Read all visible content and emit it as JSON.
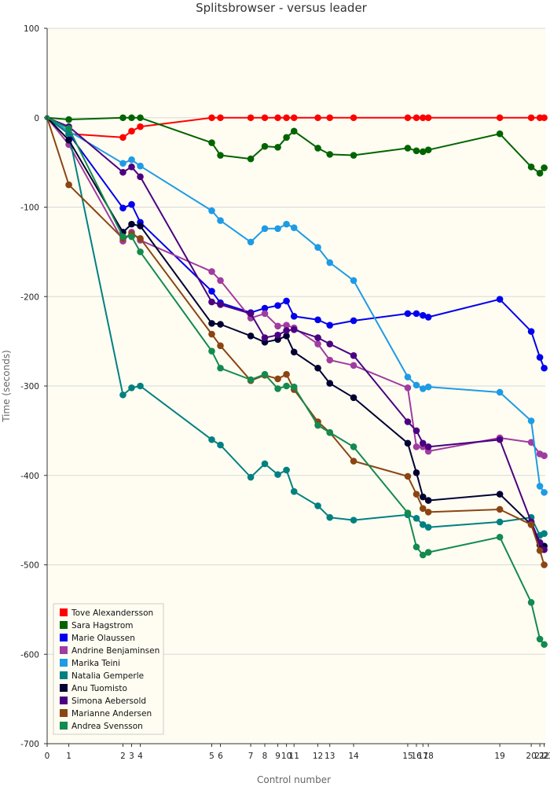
{
  "chart_data": {
    "type": "line",
    "title": "Splitsbrowser - versus leader",
    "xlabel": "Control number",
    "ylabel": "Time (seconds)",
    "ylim": [
      -700,
      100
    ],
    "yticks": [
      100,
      0,
      -100,
      -200,
      -300,
      -400,
      -500,
      -600,
      -700
    ],
    "grid": "horizontal",
    "legend_position": "bottom-left",
    "x": [
      0,
      1,
      2.05,
      2.4,
      2.8,
      5.05,
      5.4,
      6.8,
      7.45,
      8.05,
      8.45,
      8.8,
      9.9,
      10.45,
      11.55,
      14.05,
      14.45,
      14.75,
      15.0,
      18.3,
      18.75,
      19.05
    ],
    "xtick_positions": [
      0,
      1,
      2.05,
      2.4,
      2.8,
      5.05,
      5.4,
      6.8,
      7.45,
      8.05,
      8.45,
      8.8,
      9.9,
      10.45,
      11.55,
      14.05,
      14.45,
      14.75,
      15.0,
      18.3,
      19.7,
      20.0,
      20.2
    ],
    "xtick_labels": [
      "0",
      "1",
      "2",
      "3",
      "4",
      "5",
      "6",
      "7",
      "8",
      "9",
      "10",
      "11",
      "12",
      "13",
      "14",
      "15",
      "16",
      "17",
      "18",
      "19",
      "20",
      "21",
      "22"
    ],
    "xtick_last_label": "23",
    "series": [
      {
        "name": "Tove Alexandersson",
        "color": "#ff0000",
        "x": [
          0,
          1,
          3.5,
          3.9,
          4.3,
          7.6,
          8.0,
          9.4,
          10.05,
          10.65,
          11.05,
          11.4,
          12.5,
          13.05,
          14.15,
          16.65,
          17.05,
          17.35,
          17.6,
          20.9,
          22.35,
          22.75,
          22.95
        ],
        "values": [
          0,
          -18,
          -22,
          -15,
          -10,
          0,
          0,
          0,
          0,
          0,
          0,
          0,
          0,
          0,
          0,
          0,
          0,
          0,
          0,
          0,
          0,
          0,
          0
        ]
      },
      {
        "name": "Sara Hagstrom",
        "color": "#006400",
        "x": [
          0,
          1,
          3.5,
          3.9,
          4.3,
          7.6,
          8.0,
          9.4,
          10.05,
          10.65,
          11.05,
          11.4,
          12.5,
          13.05,
          14.15,
          16.65,
          17.05,
          17.35,
          17.6,
          20.9,
          22.35,
          22.75,
          22.95
        ],
        "values": [
          0,
          -2,
          0,
          0,
          0,
          -28,
          -42,
          -46,
          -32,
          -33,
          -22,
          -15,
          -34,
          -41,
          -42,
          -34,
          -37,
          -38,
          -36,
          -18,
          -55,
          -62,
          -56
        ]
      },
      {
        "name": "Marie Olaussen",
        "color": "#0000ee",
        "x": [
          0,
          1,
          3.5,
          3.9,
          4.3,
          7.6,
          8.0,
          9.4,
          10.05,
          10.65,
          11.05,
          11.4,
          12.5,
          13.05,
          14.15,
          16.65,
          17.05,
          17.35,
          17.6,
          20.9,
          22.35,
          22.75,
          22.95
        ],
        "values": [
          0,
          -18,
          -101,
          -97,
          -117,
          -194,
          -207,
          -218,
          -213,
          -210,
          -205,
          -222,
          -226,
          -232,
          -227,
          -219,
          -219,
          -221,
          -223,
          -203,
          -239,
          -268,
          -280
        ]
      },
      {
        "name": "Andrine Benjaminsen",
        "color": "#a03ca0",
        "x": [
          0,
          1,
          3.5,
          3.9,
          4.3,
          7.6,
          8.0,
          9.4,
          10.05,
          10.65,
          11.05,
          11.4,
          12.5,
          13.05,
          14.15,
          16.65,
          17.05,
          17.35,
          17.6,
          20.9,
          22.35,
          22.75,
          22.95
        ],
        "values": [
          0,
          -30,
          -138,
          -128,
          -137,
          -172,
          -182,
          -224,
          -219,
          -233,
          -232,
          -235,
          -253,
          -271,
          -277,
          -302,
          -368,
          -368,
          -373,
          -358,
          -363,
          -376,
          -378
        ]
      },
      {
        "name": "Marika Teini",
        "color": "#1e9be6",
        "x": [
          0,
          1,
          3.5,
          3.9,
          4.3,
          7.6,
          8.0,
          9.4,
          10.05,
          10.65,
          11.05,
          11.4,
          12.5,
          13.05,
          14.15,
          16.65,
          17.05,
          17.35,
          17.6,
          20.9,
          22.35,
          22.75,
          22.95
        ],
        "values": [
          0,
          -15,
          -51,
          -47,
          -54,
          -104,
          -115,
          -139,
          -124,
          -124,
          -119,
          -123,
          -145,
          -162,
          -182,
          -290,
          -299,
          -303,
          -301,
          -307,
          -339,
          -412,
          -419
        ]
      },
      {
        "name": "Natalia Gemperle",
        "color": "#008080",
        "x": [
          0,
          1,
          3.5,
          3.9,
          4.3,
          7.6,
          8.0,
          9.4,
          10.05,
          10.65,
          11.05,
          11.4,
          12.5,
          13.05,
          14.15,
          16.65,
          17.05,
          17.35,
          17.6,
          20.9,
          22.35,
          22.75,
          22.95
        ],
        "values": [
          0,
          -18,
          -310,
          -302,
          -300,
          -360,
          -366,
          -402,
          -387,
          -399,
          -394,
          -418,
          -434,
          -447,
          -450,
          -444,
          -448,
          -455,
          -458,
          -452,
          -447,
          -467,
          -465
        ]
      },
      {
        "name": "Anu Tuomisto",
        "color": "#000033",
        "x": [
          0,
          1,
          3.5,
          3.9,
          4.3,
          7.6,
          8.0,
          9.4,
          10.05,
          10.65,
          11.05,
          11.4,
          12.5,
          13.05,
          14.15,
          16.65,
          17.05,
          17.35,
          17.6,
          20.9,
          22.35,
          22.75,
          22.95
        ],
        "values": [
          0,
          -25,
          -128,
          -119,
          -121,
          -230,
          -231,
          -244,
          -251,
          -248,
          -244,
          -262,
          -280,
          -297,
          -313,
          -364,
          -397,
          -424,
          -428,
          -421,
          -455,
          -478,
          -479
        ]
      },
      {
        "name": "Simona Aebersold",
        "color": "#4b0082",
        "x": [
          0,
          1,
          3.5,
          3.9,
          4.3,
          7.6,
          8.0,
          9.4,
          10.05,
          10.65,
          11.05,
          11.4,
          12.5,
          13.05,
          14.15,
          16.65,
          17.05,
          17.35,
          17.6,
          20.9,
          22.35,
          22.75,
          22.95
        ],
        "values": [
          0,
          -10,
          -61,
          -55,
          -66,
          -206,
          -209,
          -219,
          -246,
          -243,
          -238,
          -237,
          -246,
          -253,
          -266,
          -340,
          -350,
          -364,
          -368,
          -360,
          -452,
          -475,
          -483
        ]
      },
      {
        "name": "Marianne Andersen",
        "color": "#8b4513",
        "x": [
          0,
          1,
          3.5,
          3.9,
          4.3,
          7.6,
          8.0,
          9.4,
          10.05,
          10.65,
          11.05,
          11.4,
          12.5,
          13.05,
          14.15,
          16.65,
          17.05,
          17.35,
          17.6,
          20.9,
          22.35,
          22.75,
          22.95
        ],
        "values": [
          0,
          -75,
          -135,
          -130,
          -135,
          -242,
          -255,
          -294,
          -288,
          -292,
          -287,
          -304,
          -340,
          -352,
          -384,
          -401,
          -421,
          -437,
          -441,
          -438,
          -455,
          -484,
          -500
        ]
      },
      {
        "name": "Andrea Svensson",
        "color": "#138a4f",
        "x": [
          0,
          1,
          3.5,
          3.9,
          4.3,
          7.6,
          8.0,
          9.4,
          10.05,
          10.65,
          11.05,
          11.4,
          12.5,
          13.05,
          14.15,
          16.65,
          17.05,
          17.35,
          17.6,
          20.9,
          22.35,
          22.75,
          22.95
        ],
        "values": [
          0,
          -12,
          -133,
          -133,
          -150,
          -261,
          -280,
          -293,
          -287,
          -303,
          -300,
          -301,
          -344,
          -352,
          -368,
          -442,
          -480,
          -489,
          -486,
          -469,
          -542,
          -583,
          -589
        ]
      }
    ]
  }
}
